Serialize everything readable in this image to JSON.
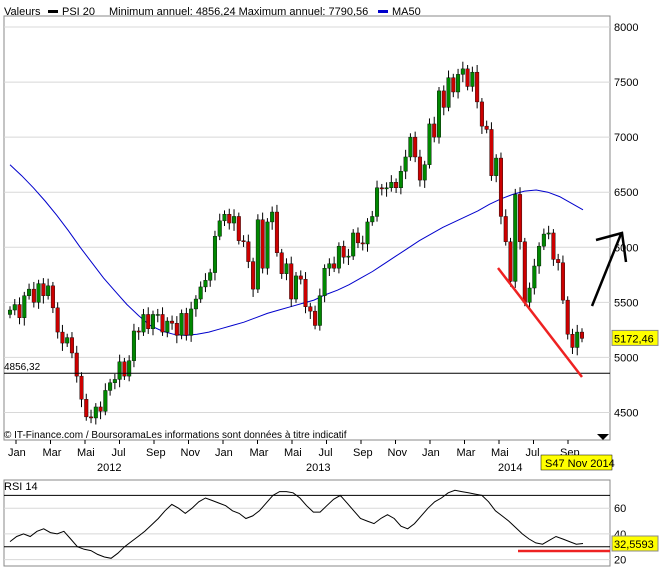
{
  "header": {
    "valeurs_label": "Valeurs",
    "series_name": "PSI 20",
    "min_max_text": "Minimum annuel: 4856,24 Maximum annuel: 7790,56",
    "ma_name": "MA50",
    "ma_color": "#0000cc",
    "price_color_up": "#008800",
    "price_color_down": "#cc0000"
  },
  "footer": {
    "source_text": "© IT-Finance.com / BoursoramaLes informations sont données à titre indicatif",
    "week_label": "S47 Nov 2014",
    "week_label_bg": "#ffff00"
  },
  "chart_data": [
    {
      "type": "candlestick",
      "title": "PSI 20",
      "subtitle": "Minimum annuel: 4856,24 Maximum annuel: 7790,56",
      "y_ticks": [
        4500,
        5000,
        5500,
        6000,
        6500,
        7000,
        7500,
        8000
      ],
      "y_tick_labels": [
        "4500",
        "5000",
        "5500",
        "6000",
        "6500",
        "7000",
        "7500",
        "8000"
      ],
      "ylim": [
        4250,
        8100
      ],
      "x_month_labels": [
        "Jan",
        "Mar",
        "Mai",
        "Jul",
        "Sep",
        "Nov",
        "Jan",
        "Mar",
        "Mai",
        "Jul",
        "Sep",
        "Nov",
        "Jan",
        "Mar",
        "Mai",
        "Jul",
        "Sep"
      ],
      "x_year_labels": [
        "2012",
        "2013",
        "2014"
      ],
      "reference_line": {
        "value": 4856.32,
        "label": "4856,32"
      },
      "last_value": {
        "value": 5172.46,
        "label": "5172,46"
      },
      "grid": true,
      "legend": "top-left",
      "series": [
        {
          "name": "PSI 20",
          "kind": "weekly-ohlc-approx",
          "closes": [
            5430,
            5480,
            5360,
            5560,
            5620,
            5500,
            5670,
            5560,
            5650,
            5450,
            5230,
            5130,
            5180,
            5040,
            4830,
            4620,
            4460,
            4450,
            4550,
            4510,
            4700,
            4770,
            4800,
            4960,
            4830,
            4970,
            5240,
            5230,
            5390,
            5260,
            5390,
            5390,
            5230,
            5330,
            5310,
            5200,
            5400,
            5200,
            5440,
            5530,
            5640,
            5700,
            5770,
            6100,
            6240,
            6300,
            6220,
            6280,
            6060,
            6050,
            5870,
            5620,
            6250,
            5810,
            6230,
            6320,
            5950,
            5760,
            5850,
            5530,
            5740,
            5710,
            5460,
            5420,
            5290,
            5560,
            5810,
            5850,
            5810,
            6010,
            5910,
            5920,
            6130,
            6040,
            6030,
            6230,
            6280,
            6540,
            6530,
            6540,
            6590,
            6540,
            6690,
            6820,
            7000,
            6820,
            6610,
            6750,
            7120,
            7000,
            7420,
            7270,
            7540,
            7410,
            7570,
            7620,
            7460,
            7590,
            7320,
            7100,
            7070,
            6650,
            6810,
            6280,
            6050,
            5690,
            6480,
            6050,
            5500,
            5630,
            5830,
            6010,
            6120,
            6130,
            5890,
            5860,
            5520,
            5210,
            5090,
            5230,
            5172.46
          ]
        },
        {
          "name": "MA50",
          "values": [
            6750,
            6650,
            6540,
            6420,
            6290,
            6150,
            6000,
            5860,
            5720,
            5600,
            5480,
            5380,
            5290,
            5240,
            5210,
            5200,
            5210,
            5230,
            5260,
            5290,
            5320,
            5360,
            5400,
            5430,
            5460,
            5490,
            5520,
            5570,
            5610,
            5660,
            5720,
            5780,
            5850,
            5920,
            5990,
            6060,
            6120,
            6180,
            6230,
            6280,
            6330,
            6390,
            6440,
            6480,
            6510,
            6520,
            6500,
            6460,
            6400,
            6340
          ]
        }
      ]
    },
    {
      "type": "line",
      "title": "RSI 14",
      "y_ticks": [
        20,
        40,
        60
      ],
      "y_tick_labels": [
        "20",
        "40",
        "60"
      ],
      "ylim": [
        15,
        82
      ],
      "reference_line": {
        "value": 30
      },
      "last_value": {
        "value": 32.5593,
        "label": "32,5593"
      },
      "series": [
        {
          "name": "RSI 14",
          "values": [
            34,
            38,
            40,
            38,
            42,
            44,
            41,
            40,
            42,
            36,
            30,
            28,
            27,
            24,
            22,
            21,
            25,
            30,
            34,
            38,
            42,
            47,
            52,
            58,
            63,
            60,
            56,
            60,
            65,
            68,
            66,
            64,
            62,
            58,
            56,
            52,
            54,
            58,
            64,
            70,
            73,
            73,
            72,
            68,
            62,
            57,
            57,
            62,
            67,
            70,
            64,
            58,
            52,
            50,
            48,
            52,
            55,
            52,
            46,
            44,
            48,
            54,
            60,
            65,
            68,
            72,
            74,
            73,
            72,
            71,
            70,
            65,
            58,
            54,
            50,
            45,
            40,
            36,
            33,
            32,
            35,
            38,
            36,
            34,
            32,
            32.5593
          ]
        }
      ]
    }
  ]
}
